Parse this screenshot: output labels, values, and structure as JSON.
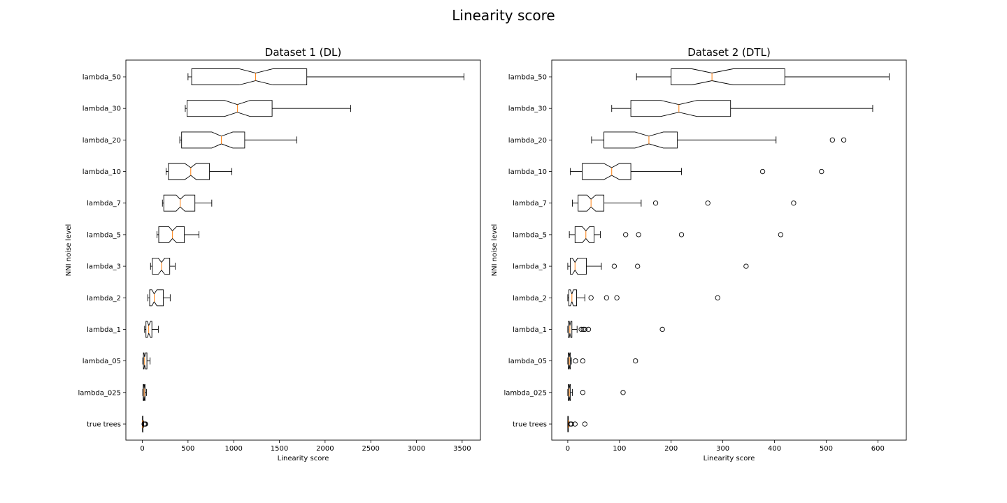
{
  "figure_title": "Linearity score",
  "chart_data": [
    {
      "type": "boxplot",
      "orientation": "horizontal",
      "notched": true,
      "title": "Dataset 1 (DL)",
      "xlabel": "Linearity score",
      "ylabel": "NNI noise level",
      "xlim": [
        -180,
        3700
      ],
      "xticks": [
        0,
        500,
        1000,
        1500,
        2000,
        2500,
        3000,
        3500
      ],
      "categories": [
        "true trees",
        "lambda_025",
        "lambda_05",
        "lambda_1",
        "lambda_2",
        "lambda_3",
        "lambda_5",
        "lambda_7",
        "lambda_10",
        "lambda_20",
        "lambda_30",
        "lambda_50"
      ],
      "boxes": [
        {
          "whislo": 0,
          "q1": 1,
          "med": 3,
          "q3": 7,
          "whishi": 15,
          "notch": [
            1,
            5
          ],
          "fliers": [
            20,
            28,
            35
          ]
        },
        {
          "whislo": 5,
          "q1": 10,
          "med": 20,
          "q3": 30,
          "whishi": 45,
          "notch": [
            16,
            24
          ],
          "fliers": []
        },
        {
          "whislo": 5,
          "q1": 12,
          "med": 25,
          "q3": 50,
          "whishi": 85,
          "notch": [
            18,
            35
          ],
          "fliers": []
        },
        {
          "whislo": 25,
          "q1": 40,
          "med": 70,
          "q3": 105,
          "whishi": 175,
          "notch": [
            55,
            90
          ],
          "fliers": []
        },
        {
          "whislo": 60,
          "q1": 80,
          "med": 130,
          "q3": 230,
          "whishi": 305,
          "notch": [
            105,
            160
          ],
          "fliers": []
        },
        {
          "whislo": 90,
          "q1": 110,
          "med": 210,
          "q3": 300,
          "whishi": 360,
          "notch": [
            175,
            245
          ],
          "fliers": []
        },
        {
          "whislo": 160,
          "q1": 180,
          "med": 330,
          "q3": 460,
          "whishi": 620,
          "notch": [
            290,
            375
          ],
          "fliers": []
        },
        {
          "whislo": 220,
          "q1": 235,
          "med": 415,
          "q3": 575,
          "whishi": 760,
          "notch": [
            370,
            465
          ],
          "fliers": []
        },
        {
          "whislo": 260,
          "q1": 285,
          "med": 530,
          "q3": 735,
          "whishi": 980,
          "notch": [
            465,
            590
          ],
          "fliers": []
        },
        {
          "whislo": 410,
          "q1": 430,
          "med": 865,
          "q3": 1120,
          "whishi": 1690,
          "notch": [
            760,
            990
          ],
          "fliers": []
        },
        {
          "whislo": 470,
          "q1": 490,
          "med": 1040,
          "q3": 1420,
          "whishi": 2280,
          "notch": [
            900,
            1180
          ],
          "fliers": []
        },
        {
          "whislo": 500,
          "q1": 540,
          "med": 1240,
          "q3": 1800,
          "whishi": 3520,
          "notch": [
            1060,
            1430
          ],
          "fliers": []
        }
      ]
    },
    {
      "type": "boxplot",
      "orientation": "horizontal",
      "notched": true,
      "title": "Dataset 2 (DTL)",
      "xlabel": "Linearity score",
      "ylabel": "NNI noise level",
      "xlim": [
        -31,
        655
      ],
      "xticks": [
        0,
        100,
        200,
        300,
        400,
        500,
        600
      ],
      "categories": [
        "true trees",
        "lambda_025",
        "lambda_05",
        "lambda_1",
        "lambda_2",
        "lambda_3",
        "lambda_5",
        "lambda_7",
        "lambda_10",
        "lambda_20",
        "lambda_30",
        "lambda_50"
      ],
      "boxes": [
        {
          "whislo": 0,
          "q1": 0,
          "med": 1,
          "q3": 1,
          "whishi": 2,
          "notch": [
            0,
            2
          ],
          "fliers": [
            5,
            7,
            14,
            33
          ]
        },
        {
          "whislo": 0,
          "q1": 1,
          "med": 3,
          "q3": 5,
          "whishi": 9,
          "notch": [
            2,
            4
          ],
          "fliers": [
            29,
            107
          ]
        },
        {
          "whislo": 0,
          "q1": 1,
          "med": 3,
          "q3": 5,
          "whishi": 7,
          "notch": [
            2,
            4
          ],
          "fliers": [
            15,
            29,
            131
          ]
        },
        {
          "whislo": 0,
          "q1": 1,
          "med": 4,
          "q3": 8,
          "whishi": 18,
          "notch": [
            3,
            6
          ],
          "fliers": [
            26,
            30,
            33,
            40,
            183
          ]
        },
        {
          "whislo": 0,
          "q1": 2,
          "med": 8,
          "q3": 17,
          "whishi": 33,
          "notch": [
            5,
            11
          ],
          "fliers": [
            45,
            75,
            95,
            290
          ]
        },
        {
          "whislo": 0,
          "q1": 5,
          "med": 14,
          "q3": 36,
          "whishi": 65,
          "notch": [
            9,
            19
          ],
          "fliers": [
            90,
            135,
            345
          ]
        },
        {
          "whislo": 3,
          "q1": 14,
          "med": 35,
          "q3": 51,
          "whishi": 63,
          "notch": [
            28,
            42
          ],
          "fliers": [
            112,
            137,
            220,
            412
          ]
        },
        {
          "whislo": 9,
          "q1": 20,
          "med": 45,
          "q3": 70,
          "whishi": 142,
          "notch": [
            37,
            54
          ],
          "fliers": [
            170,
            271,
            437
          ]
        },
        {
          "whislo": 5,
          "q1": 28,
          "med": 85,
          "q3": 122,
          "whishi": 220,
          "notch": [
            70,
            100
          ],
          "fliers": [
            377,
            491
          ]
        },
        {
          "whislo": 46,
          "q1": 70,
          "med": 157,
          "q3": 212,
          "whishi": 403,
          "notch": [
            130,
            185
          ],
          "fliers": [
            512,
            534
          ]
        },
        {
          "whislo": 85,
          "q1": 122,
          "med": 215,
          "q3": 315,
          "whishi": 590,
          "notch": [
            180,
            250
          ],
          "fliers": []
        },
        {
          "whislo": 133,
          "q1": 200,
          "med": 279,
          "q3": 420,
          "whishi": 622,
          "notch": [
            240,
            320
          ],
          "fliers": []
        }
      ]
    }
  ]
}
